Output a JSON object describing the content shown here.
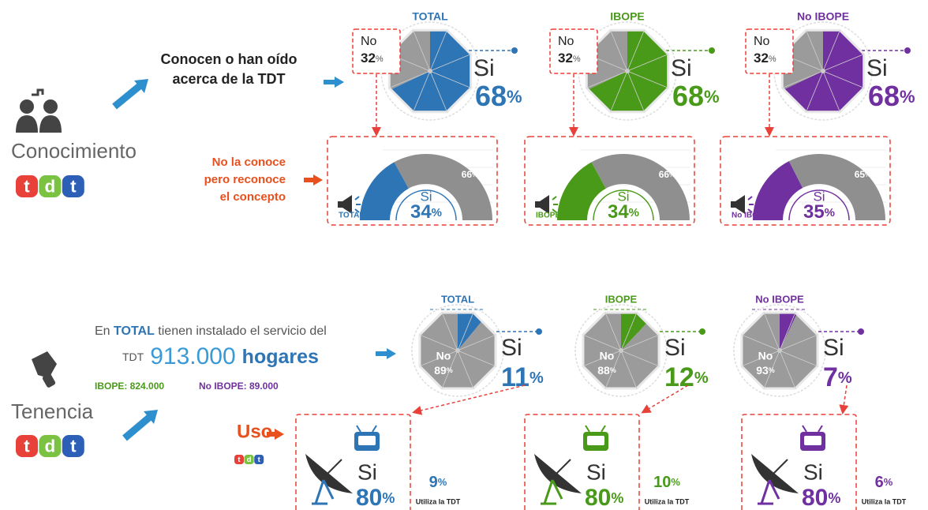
{
  "unit": "%",
  "yes_label": "Si",
  "no_label": "No",
  "logo_letters": [
    "t",
    "d",
    "t"
  ],
  "conocimiento": {
    "label": "Conocimiento",
    "question": [
      "Conocen o han oído",
      "acerca de la TDT"
    ],
    "sub_question": [
      "No la conoce",
      "pero reconoce",
      "el concepto"
    ],
    "groups": [
      {
        "name": "TOTAL",
        "color": "#2e75b6",
        "no": 32,
        "si": 68,
        "reconoce_si": 34,
        "reconoce_no": 66
      },
      {
        "name": "IBOPE",
        "color": "#4a9a1a",
        "no": 32,
        "si": 68,
        "reconoce_si": 34,
        "reconoce_no": 66
      },
      {
        "name": "No IBOPE",
        "color": "#7030a0",
        "no": 32,
        "si": 68,
        "reconoce_si": 35,
        "reconoce_no": 65
      }
    ]
  },
  "tenencia": {
    "label": "Tenencia",
    "intro": [
      "En ",
      "TOTAL",
      " tienen instalado el servicio del"
    ],
    "tdt": "TDT",
    "households": "913.000",
    "households_unit": "hogares",
    "ibope": "IBOPE: 824.000",
    "no_ibope": "No IBOPE: 89.000",
    "uso": "Uso",
    "utiliza": "Utiliza la TDT",
    "groups": [
      {
        "name": "TOTAL",
        "color": "#2e75b6",
        "no": 89,
        "si": 11,
        "uso_si": 80,
        "utiliza": 9
      },
      {
        "name": "IBOPE",
        "color": "#4a9a1a",
        "no": 88,
        "si": 12,
        "uso_si": 80,
        "utiliza": 10
      },
      {
        "name": "No IBOPE",
        "color": "#7030a0",
        "no": 93,
        "si": 7,
        "uso_si": 80,
        "utiliza": 6
      }
    ]
  }
}
